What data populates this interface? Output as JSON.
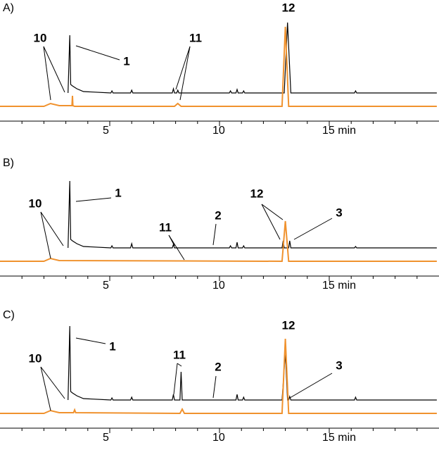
{
  "chart_data": [
    {
      "type": "line",
      "panel_label": "A)",
      "xlim": [
        0,
        20
      ],
      "xticks": [
        5,
        10,
        {
          "value": 15,
          "label": "15 min"
        }
      ],
      "minor_xticks": [
        1,
        2,
        3,
        4,
        6,
        7,
        8,
        9,
        11,
        12,
        13,
        14,
        16,
        17,
        18,
        19
      ],
      "annotations": [
        "10",
        "1",
        "11",
        "12"
      ],
      "series": [
        {
          "color": "#000000",
          "x": [
            3.1,
            3.18,
            3.22,
            3.3,
            3.5,
            3.8,
            5.05,
            5.1,
            5.15,
            5.95,
            6.0,
            6.05,
            7.85,
            7.9,
            7.95,
            8.05,
            8.1,
            8.15,
            10.45,
            10.5,
            10.55,
            10.75,
            10.8,
            10.85,
            11.05,
            11.1,
            11.15,
            12.95,
            13.1,
            13.25,
            16.15,
            16.2,
            16.25,
            19.9
          ],
          "values": [
            0,
            82,
            12,
            10,
            6,
            2,
            0,
            3,
            0,
            0,
            4,
            0,
            0,
            6,
            0,
            0,
            4,
            0,
            0,
            3,
            0,
            0,
            5,
            0,
            0,
            3,
            0,
            0,
            100,
            0,
            0,
            3,
            0,
            0
          ]
        },
        {
          "color": "#f0922e",
          "x": [
            0,
            2.0,
            2.3,
            2.7,
            3.2,
            3.28,
            3.3,
            3.32,
            3.4,
            7.95,
            8.1,
            8.25,
            12.85,
            13.0,
            13.15,
            19.9
          ],
          "values": [
            0,
            0,
            4,
            1,
            1,
            1,
            15,
            1,
            0,
            0,
            4,
            0,
            0,
            113,
            0,
            0
          ]
        }
      ]
    },
    {
      "type": "line",
      "panel_label": "B)",
      "xlim": [
        0,
        20
      ],
      "xticks": [
        5,
        10,
        {
          "value": 15,
          "label": "15 min"
        }
      ],
      "minor_xticks": [
        1,
        2,
        3,
        4,
        6,
        7,
        8,
        9,
        11,
        12,
        13,
        14,
        16,
        17,
        18,
        19
      ],
      "annotations": [
        "1",
        "10",
        "11",
        "2",
        "12",
        "3"
      ],
      "series": [
        {
          "color": "#000000",
          "x": [
            3.1,
            3.18,
            3.22,
            3.3,
            3.5,
            3.8,
            5.05,
            5.1,
            5.15,
            5.95,
            6.0,
            6.05,
            7.85,
            7.9,
            7.95,
            10.45,
            10.5,
            10.55,
            10.75,
            10.8,
            10.85,
            11.05,
            11.1,
            11.15,
            12.85,
            12.9,
            12.95,
            13.15,
            13.2,
            13.25,
            16.15,
            16.2,
            16.25,
            19.9
          ],
          "values": [
            0,
            95,
            12,
            10,
            6,
            2,
            0,
            3,
            0,
            0,
            6,
            0,
            0,
            5,
            0,
            0,
            3,
            0,
            0,
            8,
            0,
            0,
            3,
            0,
            0,
            10,
            0,
            0,
            10,
            0,
            0,
            2,
            0,
            0
          ]
        },
        {
          "color": "#f0922e",
          "x": [
            0,
            2.0,
            2.3,
            2.7,
            12.85,
            13.0,
            13.15,
            19.9
          ],
          "values": [
            0,
            0,
            4,
            1,
            0,
            57,
            0,
            0
          ]
        }
      ]
    },
    {
      "type": "line",
      "panel_label": "C)",
      "xlim": [
        0,
        20
      ],
      "xticks": [
        5,
        10,
        {
          "value": 15,
          "label": "15 min"
        }
      ],
      "minor_xticks": [
        1,
        2,
        3,
        4,
        6,
        7,
        8,
        9,
        11,
        12,
        13,
        14,
        16,
        17,
        18,
        19
      ],
      "annotations": [
        "1",
        "10",
        "11",
        "2",
        "12",
        "3"
      ],
      "series": [
        {
          "color": "#000000",
          "x": [
            3.1,
            3.18,
            3.22,
            3.3,
            3.5,
            3.8,
            5.05,
            5.1,
            5.15,
            5.95,
            6.0,
            6.05,
            7.85,
            7.9,
            7.95,
            8.2,
            8.25,
            8.3,
            10.75,
            10.8,
            10.85,
            11.05,
            11.1,
            11.15,
            12.85,
            13.0,
            13.1,
            13.15,
            13.2,
            13.25,
            16.15,
            16.2,
            16.25,
            19.9
          ],
          "values": [
            0,
            105,
            12,
            10,
            6,
            2,
            0,
            3,
            0,
            0,
            4,
            0,
            0,
            8,
            0,
            0,
            40,
            0,
            0,
            8,
            0,
            0,
            4,
            0,
            0,
            67,
            0,
            0,
            5,
            0,
            0,
            4,
            0,
            0
          ]
        },
        {
          "color": "#f0922e",
          "x": [
            0,
            2.0,
            2.3,
            2.7,
            3.35,
            3.4,
            3.45,
            8.2,
            8.3,
            8.4,
            12.85,
            13.0,
            13.15,
            19.9
          ],
          "values": [
            0,
            0,
            4,
            1,
            1,
            5,
            1,
            0,
            6,
            0,
            0,
            106,
            0,
            0
          ]
        }
      ]
    }
  ]
}
